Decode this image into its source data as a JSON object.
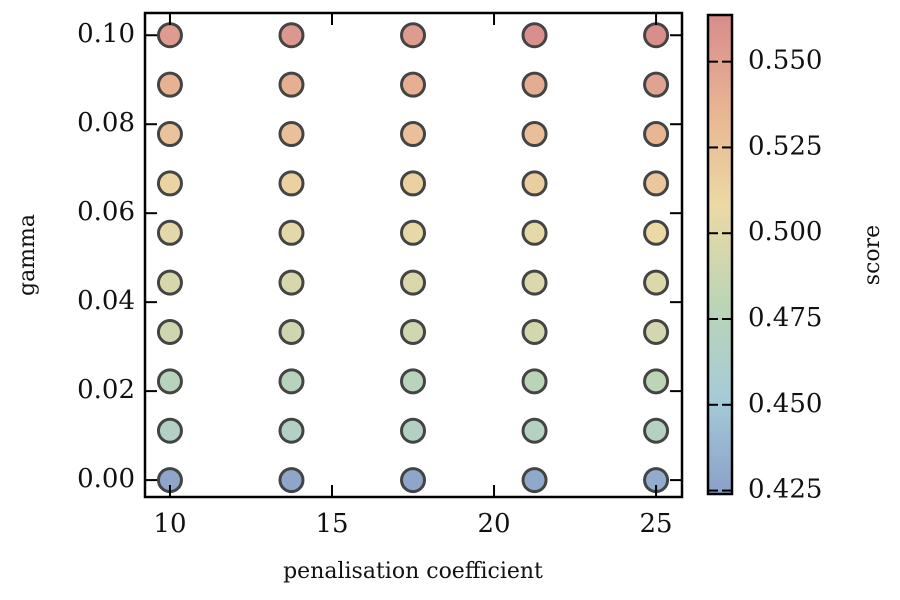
{
  "chart_data": {
    "type": "scatter",
    "xlabel": "penalisation coefficient",
    "ylabel": "gamma",
    "colorbar_label": "score",
    "x": [
      10,
      13.75,
      17.5,
      21.25,
      25,
      10,
      13.75,
      17.5,
      21.25,
      25,
      10,
      13.75,
      17.5,
      21.25,
      25,
      10,
      13.75,
      17.5,
      21.25,
      25,
      10,
      13.75,
      17.5,
      21.25,
      25,
      10,
      13.75,
      17.5,
      21.25,
      25,
      10,
      13.75,
      17.5,
      21.25,
      25,
      10,
      13.75,
      17.5,
      21.25,
      25,
      10,
      13.75,
      17.5,
      21.25,
      25,
      10,
      13.75,
      17.5,
      21.25,
      25
    ],
    "y": [
      0,
      0,
      0,
      0,
      0,
      0.0111,
      0.0111,
      0.0111,
      0.0111,
      0.0111,
      0.0222,
      0.0222,
      0.0222,
      0.0222,
      0.0222,
      0.0333,
      0.0333,
      0.0333,
      0.0333,
      0.0333,
      0.0444,
      0.0444,
      0.0444,
      0.0444,
      0.0444,
      0.0556,
      0.0556,
      0.0556,
      0.0556,
      0.0556,
      0.0667,
      0.0667,
      0.0667,
      0.0667,
      0.0667,
      0.0778,
      0.0778,
      0.0778,
      0.0778,
      0.0778,
      0.0889,
      0.0889,
      0.0889,
      0.0889,
      0.0889,
      0.1,
      0.1,
      0.1,
      0.1,
      0.1
    ],
    "scores": [
      0.428,
      0.428,
      0.428,
      0.43,
      0.432,
      0.468,
      0.468,
      0.469,
      0.47,
      0.47,
      0.474,
      0.475,
      0.476,
      0.478,
      0.48,
      0.49,
      0.49,
      0.491,
      0.493,
      0.494,
      0.496,
      0.496,
      0.497,
      0.498,
      0.499,
      0.503,
      0.503,
      0.505,
      0.504,
      0.508,
      0.512,
      0.514,
      0.515,
      0.516,
      0.522,
      0.525,
      0.527,
      0.527,
      0.528,
      0.535,
      0.538,
      0.54,
      0.54,
      0.542,
      0.548,
      0.553,
      0.556,
      0.553,
      0.561,
      0.562
    ],
    "xlim": [
      9.23,
      25.8
    ],
    "ylim": [
      -0.0038,
      0.105
    ],
    "xticks": [
      10,
      15,
      20,
      25
    ],
    "yticks": [
      {
        "value": 0,
        "label": "0.00"
      },
      0.02,
      0.04,
      0.06,
      0.08,
      {
        "value": 0.1,
        "label": "0.10"
      }
    ],
    "clim": [
      0.424,
      0.5636
    ],
    "cticks": [
      0.425,
      {
        "value": 0.45,
        "label": "0.450"
      },
      0.475,
      {
        "value": 0.5,
        "label": "0.500"
      },
      0.525,
      {
        "value": 0.55,
        "label": "0.550"
      }
    ],
    "colormap": [
      "#8aa0c8",
      "#a5cbd8",
      "#bcd5b5",
      "#ecd9a5",
      "#e8b593",
      "#d88c8c"
    ],
    "marker_edge": "#444444"
  }
}
